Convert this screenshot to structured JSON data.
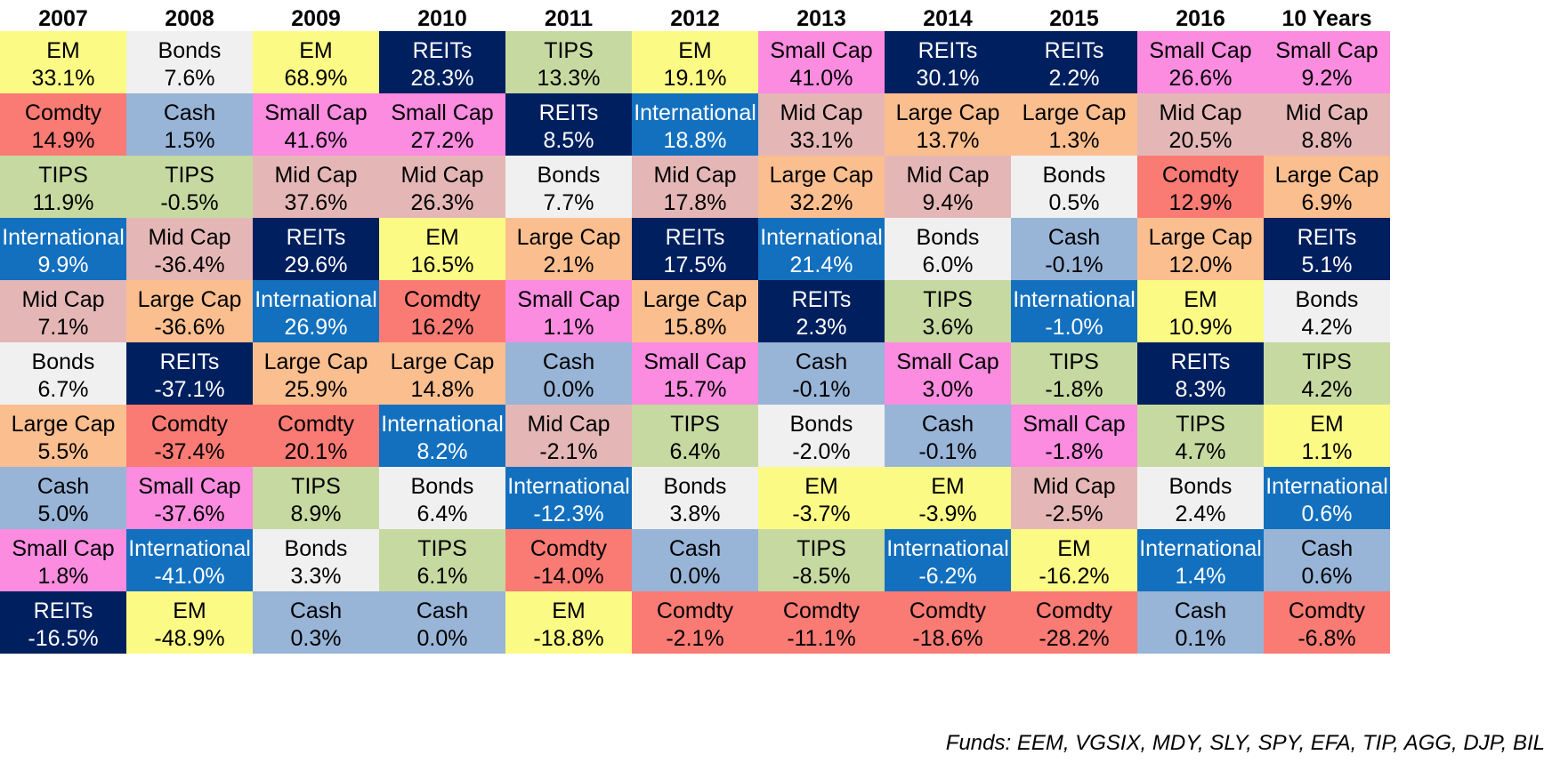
{
  "chart_data": {
    "type": "table",
    "title": "",
    "columns": [
      "2007",
      "2008",
      "2009",
      "2010",
      "2011",
      "2012",
      "2013",
      "2014",
      "2015",
      "2016",
      "10 Years"
    ],
    "asset_colors": {
      "EM": "#fbfa85",
      "Bonds": "#f0f0f0",
      "REITs": "#001f5f",
      "TIPS": "#c6d9a0",
      "Small Cap": "#fb8ce0",
      "Comdty": "#fa7b74",
      "Cash": "#98b4d7",
      "International": "#1370bf",
      "Mid Cap": "#e4b7b6",
      "Large Cap": "#fbbe8f"
    },
    "dark_assets": [
      "REITs",
      "International"
    ],
    "rankings": [
      [
        {
          "asset": "EM",
          "value": "33.1%"
        },
        {
          "asset": "Comdty",
          "value": "14.9%"
        },
        {
          "asset": "TIPS",
          "value": "11.9%"
        },
        {
          "asset": "International",
          "value": "9.9%"
        },
        {
          "asset": "Mid Cap",
          "value": "7.1%"
        },
        {
          "asset": "Bonds",
          "value": "6.7%"
        },
        {
          "asset": "Large Cap",
          "value": "5.5%"
        },
        {
          "asset": "Cash",
          "value": "5.0%"
        },
        {
          "asset": "Small Cap",
          "value": "1.8%"
        },
        {
          "asset": "REITs",
          "value": "-16.5%"
        }
      ],
      [
        {
          "asset": "Bonds",
          "value": "7.6%"
        },
        {
          "asset": "Cash",
          "value": "1.5%"
        },
        {
          "asset": "TIPS",
          "value": "-0.5%"
        },
        {
          "asset": "Mid Cap",
          "value": "-36.4%"
        },
        {
          "asset": "Large Cap",
          "value": "-36.6%"
        },
        {
          "asset": "REITs",
          "value": "-37.1%"
        },
        {
          "asset": "Comdty",
          "value": "-37.4%"
        },
        {
          "asset": "Small Cap",
          "value": "-37.6%"
        },
        {
          "asset": "International",
          "value": "-41.0%"
        },
        {
          "asset": "EM",
          "value": "-48.9%"
        }
      ],
      [
        {
          "asset": "EM",
          "value": "68.9%"
        },
        {
          "asset": "Small Cap",
          "value": "41.6%"
        },
        {
          "asset": "Mid Cap",
          "value": "37.6%"
        },
        {
          "asset": "REITs",
          "value": "29.6%"
        },
        {
          "asset": "International",
          "value": "26.9%"
        },
        {
          "asset": "Large Cap",
          "value": "25.9%"
        },
        {
          "asset": "Comdty",
          "value": "20.1%"
        },
        {
          "asset": "TIPS",
          "value": "8.9%"
        },
        {
          "asset": "Bonds",
          "value": "3.3%"
        },
        {
          "asset": "Cash",
          "value": "0.3%"
        }
      ],
      [
        {
          "asset": "REITs",
          "value": "28.3%"
        },
        {
          "asset": "Small Cap",
          "value": "27.2%"
        },
        {
          "asset": "Mid Cap",
          "value": "26.3%"
        },
        {
          "asset": "EM",
          "value": "16.5%"
        },
        {
          "asset": "Comdty",
          "value": "16.2%"
        },
        {
          "asset": "Large Cap",
          "value": "14.8%"
        },
        {
          "asset": "International",
          "value": "8.2%"
        },
        {
          "asset": "Bonds",
          "value": "6.4%"
        },
        {
          "asset": "TIPS",
          "value": "6.1%"
        },
        {
          "asset": "Cash",
          "value": "0.0%"
        }
      ],
      [
        {
          "asset": "TIPS",
          "value": "13.3%"
        },
        {
          "asset": "REITs",
          "value": "8.5%"
        },
        {
          "asset": "Bonds",
          "value": "7.7%"
        },
        {
          "asset": "Large Cap",
          "value": "2.1%"
        },
        {
          "asset": "Small Cap",
          "value": "1.1%"
        },
        {
          "asset": "Cash",
          "value": "0.0%"
        },
        {
          "asset": "Mid Cap",
          "value": "-2.1%"
        },
        {
          "asset": "International",
          "value": "-12.3%"
        },
        {
          "asset": "Comdty",
          "value": "-14.0%"
        },
        {
          "asset": "EM",
          "value": "-18.8%"
        }
      ],
      [
        {
          "asset": "EM",
          "value": "19.1%"
        },
        {
          "asset": "International",
          "value": "18.8%"
        },
        {
          "asset": "Mid Cap",
          "value": "17.8%"
        },
        {
          "asset": "REITs",
          "value": "17.5%"
        },
        {
          "asset": "Large Cap",
          "value": "15.8%"
        },
        {
          "asset": "Small Cap",
          "value": "15.7%"
        },
        {
          "asset": "TIPS",
          "value": "6.4%"
        },
        {
          "asset": "Bonds",
          "value": "3.8%"
        },
        {
          "asset": "Cash",
          "value": "0.0%"
        },
        {
          "asset": "Comdty",
          "value": "-2.1%"
        }
      ],
      [
        {
          "asset": "Small Cap",
          "value": "41.0%"
        },
        {
          "asset": "Mid Cap",
          "value": "33.1%"
        },
        {
          "asset": "Large Cap",
          "value": "32.2%"
        },
        {
          "asset": "International",
          "value": "21.4%"
        },
        {
          "asset": "REITs",
          "value": "2.3%"
        },
        {
          "asset": "Cash",
          "value": "-0.1%"
        },
        {
          "asset": "Bonds",
          "value": "-2.0%"
        },
        {
          "asset": "EM",
          "value": "-3.7%"
        },
        {
          "asset": "TIPS",
          "value": "-8.5%"
        },
        {
          "asset": "Comdty",
          "value": "-11.1%"
        }
      ],
      [
        {
          "asset": "REITs",
          "value": "30.1%"
        },
        {
          "asset": "Large Cap",
          "value": "13.7%"
        },
        {
          "asset": "Mid Cap",
          "value": "9.4%"
        },
        {
          "asset": "Bonds",
          "value": "6.0%"
        },
        {
          "asset": "TIPS",
          "value": "3.6%"
        },
        {
          "asset": "Small Cap",
          "value": "3.0%"
        },
        {
          "asset": "Cash",
          "value": "-0.1%"
        },
        {
          "asset": "EM",
          "value": "-3.9%"
        },
        {
          "asset": "International",
          "value": "-6.2%"
        },
        {
          "asset": "Comdty",
          "value": "-18.6%"
        }
      ],
      [
        {
          "asset": "REITs",
          "value": "2.2%"
        },
        {
          "asset": "Large Cap",
          "value": "1.3%"
        },
        {
          "asset": "Bonds",
          "value": "0.5%"
        },
        {
          "asset": "Cash",
          "value": "-0.1%"
        },
        {
          "asset": "International",
          "value": "-1.0%"
        },
        {
          "asset": "TIPS",
          "value": "-1.8%"
        },
        {
          "asset": "Small Cap",
          "value": "-1.8%"
        },
        {
          "asset": "Mid Cap",
          "value": "-2.5%"
        },
        {
          "asset": "EM",
          "value": "-16.2%"
        },
        {
          "asset": "Comdty",
          "value": "-28.2%"
        }
      ],
      [
        {
          "asset": "Small Cap",
          "value": "26.6%"
        },
        {
          "asset": "Mid Cap",
          "value": "20.5%"
        },
        {
          "asset": "Comdty",
          "value": "12.9%"
        },
        {
          "asset": "Large Cap",
          "value": "12.0%"
        },
        {
          "asset": "EM",
          "value": "10.9%"
        },
        {
          "asset": "REITs",
          "value": "8.3%"
        },
        {
          "asset": "TIPS",
          "value": "4.7%"
        },
        {
          "asset": "Bonds",
          "value": "2.4%"
        },
        {
          "asset": "International",
          "value": "1.4%"
        },
        {
          "asset": "Cash",
          "value": "0.1%"
        }
      ],
      [
        {
          "asset": "Small Cap",
          "value": "9.2%"
        },
        {
          "asset": "Mid Cap",
          "value": "8.8%"
        },
        {
          "asset": "Large Cap",
          "value": "6.9%"
        },
        {
          "asset": "REITs",
          "value": "5.1%"
        },
        {
          "asset": "Bonds",
          "value": "4.2%"
        },
        {
          "asset": "TIPS",
          "value": "4.2%"
        },
        {
          "asset": "EM",
          "value": "1.1%"
        },
        {
          "asset": "International",
          "value": "0.6%"
        },
        {
          "asset": "Cash",
          "value": "0.6%"
        },
        {
          "asset": "Comdty",
          "value": "-6.8%"
        }
      ]
    ],
    "footnote": "Funds: EEM, VGSIX, MDY, SLY, SPY, EFA, TIP, AGG, DJP, BIL"
  }
}
